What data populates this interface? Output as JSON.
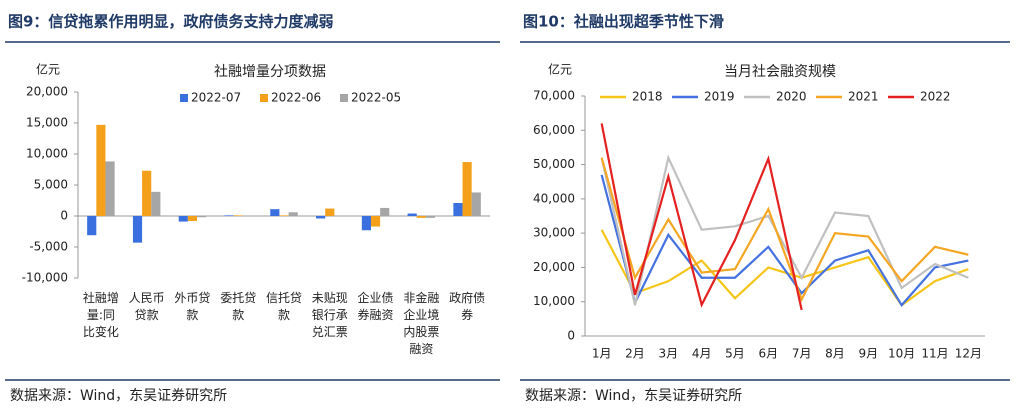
{
  "chart_data": [
    {
      "type": "bar",
      "figure_title": "图9：信贷拖累作用明显，政府债务支持力度减弱",
      "title": "社融增量分项数据",
      "unit": "亿元",
      "source": "数据来源：Wind，东吴证券研究所",
      "categories": [
        "社融增量:同比变化",
        "人民币贷款",
        "外币贷款",
        "委托贷款",
        "信托贷款",
        "未贴现银行承兑汇票",
        "企业债券融资",
        "非金融企业境内股票融资",
        "政府债券"
      ],
      "series": [
        {
          "name": "2022-07",
          "color": "#3a6fe0",
          "values": [
            -3100,
            -4300,
            -900,
            100,
            1100,
            -400,
            -2300,
            400,
            2100
          ]
        },
        {
          "name": "2022-06",
          "color": "#f5a01a",
          "values": [
            14700,
            7300,
            -800,
            100,
            100,
            1200,
            -1700,
            -300,
            8700
          ]
        },
        {
          "name": "2022-05",
          "color": "#a6a6a6",
          "values": [
            8800,
            3900,
            -200,
            0,
            600,
            0,
            1300,
            -300,
            3800
          ]
        }
      ],
      "ylim": [
        -10000,
        20000
      ],
      "yticks": [
        {
          "value": -10000,
          "label": "-10,000"
        },
        {
          "value": -5000,
          "label": "-5,000"
        },
        0,
        {
          "value": 5000,
          "label": "5,000"
        },
        {
          "value": 10000,
          "label": "10,000"
        },
        {
          "value": 15000,
          "label": "15,000"
        },
        {
          "value": 20000,
          "label": "20,000"
        }
      ],
      "grid": false
    },
    {
      "type": "line",
      "figure_title": "图10：社融出现超季节性下滑",
      "title": "当月社会融资规模",
      "unit": "亿元",
      "source": "数据来源：Wind，东吴证券研究所",
      "categories": [
        "1月",
        "2月",
        "3月",
        "4月",
        "5月",
        "6月",
        "7月",
        "8月",
        "9月",
        "10月",
        "11月",
        "12月"
      ],
      "series": [
        {
          "name": "2018",
          "color": "#f5c518",
          "values": [
            31000,
            12500,
            16000,
            22000,
            11000,
            20000,
            17000,
            20000,
            23000,
            9000,
            16000,
            19500
          ]
        },
        {
          "name": "2019",
          "color": "#4472e0",
          "values": [
            47000,
            9700,
            29500,
            17000,
            17000,
            26000,
            12500,
            22000,
            25000,
            9000,
            20000,
            22000
          ]
        },
        {
          "name": "2020",
          "color": "#c0c0c0",
          "values": [
            52000,
            9000,
            52000,
            31000,
            32000,
            35000,
            17000,
            36000,
            35000,
            14000,
            21000,
            17000
          ]
        },
        {
          "name": "2021",
          "color": "#f5a623",
          "values": [
            52000,
            17000,
            34000,
            18500,
            19500,
            37000,
            10700,
            30000,
            29000,
            16000,
            26000,
            23700
          ]
        },
        {
          "name": "2022",
          "color": "#e52020",
          "values": [
            62000,
            12000,
            46500,
            9100,
            28000,
            51700,
            7600,
            null,
            null,
            null,
            null,
            null
          ]
        }
      ],
      "ylim": [
        0,
        70000
      ],
      "yticks": [
        0,
        {
          "value": 10000,
          "label": "10,000"
        },
        {
          "value": 20000,
          "label": "20,000"
        },
        {
          "value": 30000,
          "label": "30,000"
        },
        {
          "value": 40000,
          "label": "40,000"
        },
        {
          "value": 50000,
          "label": "50,000"
        },
        {
          "value": 60000,
          "label": "60,000"
        },
        {
          "value": 70000,
          "label": "70,000"
        }
      ],
      "grid": false
    }
  ]
}
